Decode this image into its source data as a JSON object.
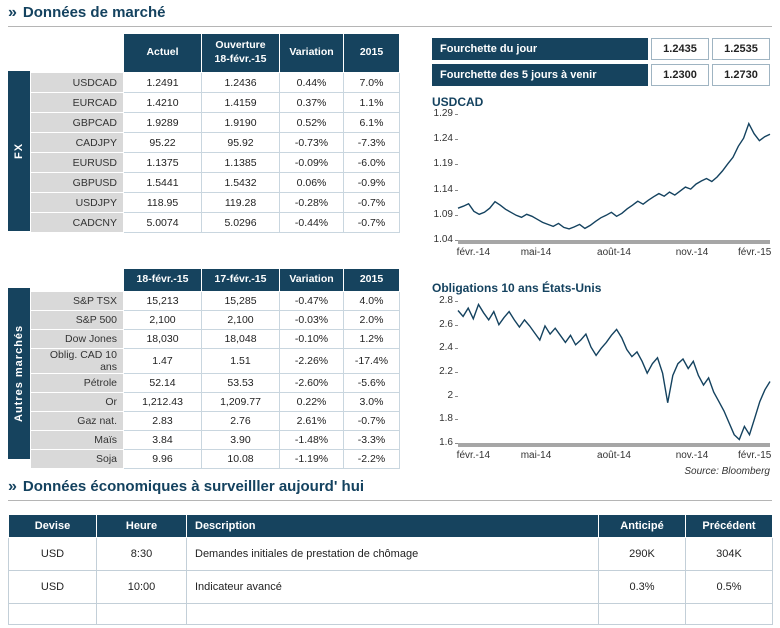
{
  "icons": {
    "section_chevron": "»"
  },
  "colors": {
    "navy": "#16435E",
    "green": "#2E9E50",
    "red": "#CC3333",
    "label_gray": "#D9D9D9",
    "axis_gray": "#A6A6A6"
  },
  "sections": {
    "market_title": "Données de marché",
    "econ_title": "Données économiques à surveilller aujourd' hui"
  },
  "fx_table": {
    "side_label": "FX",
    "columns": [
      "Actuel",
      "Ouverture\n18-févr.-15",
      "Variation",
      "2015"
    ],
    "rows": [
      {
        "label": "USDCAD",
        "values": [
          "1.2491",
          "1.2436",
          "0.44%",
          "7.0%"
        ]
      },
      {
        "label": "EURCAD",
        "values": [
          "1.4210",
          "1.4159",
          "0.37%",
          "1.1%"
        ]
      },
      {
        "label": "GBPCAD",
        "values": [
          "1.9289",
          "1.9190",
          "0.52%",
          "6.1%"
        ]
      },
      {
        "label": "CADJPY",
        "values": [
          "95.22",
          "95.92",
          "-0.73%",
          "-7.3%"
        ]
      },
      {
        "label": "EURUSD",
        "values": [
          "1.1375",
          "1.1385",
          "-0.09%",
          "-6.0%"
        ]
      },
      {
        "label": "GBPUSD",
        "values": [
          "1.5441",
          "1.5432",
          "0.06%",
          "-0.9%"
        ]
      },
      {
        "label": "USDJPY",
        "values": [
          "118.95",
          "119.28",
          "-0.28%",
          "-0.7%"
        ]
      },
      {
        "label": "CADCNY",
        "values": [
          "5.0074",
          "5.0296",
          "-0.44%",
          "-0.7%"
        ]
      }
    ]
  },
  "markets_table": {
    "side_label": "Autres marchés",
    "columns": [
      "18-févr.-15",
      "17-févr.-15",
      "Variation",
      "2015"
    ],
    "rows": [
      {
        "label": "S&P TSX",
        "values": [
          "15,213",
          "15,285",
          "-0.47%",
          "4.0%"
        ]
      },
      {
        "label": "S&P 500",
        "values": [
          "2,100",
          "2,100",
          "-0.03%",
          "2.0%"
        ]
      },
      {
        "label": "Dow Jones",
        "values": [
          "18,030",
          "18,048",
          "-0.10%",
          "1.2%"
        ]
      },
      {
        "label": "Oblig. CAD 10 ans",
        "values": [
          "1.47",
          "1.51",
          "-2.26%",
          "-17.4%"
        ]
      },
      {
        "label": "Pétrole",
        "values": [
          "52.14",
          "53.53",
          "-2.60%",
          "-5.6%"
        ]
      },
      {
        "label": "Or",
        "values": [
          "1,212.43",
          "1,209.77",
          "0.22%",
          "3.0%"
        ]
      },
      {
        "label": "Gaz nat.",
        "values": [
          "2.83",
          "2.76",
          "2.61%",
          "-0.7%"
        ]
      },
      {
        "label": "Maïs",
        "values": [
          "3.84",
          "3.90",
          "-1.48%",
          "-3.3%"
        ]
      },
      {
        "label": "Soja",
        "values": [
          "9.96",
          "10.08",
          "-1.19%",
          "-2.2%"
        ]
      }
    ]
  },
  "ranges": [
    {
      "label": "Fourchette du jour",
      "low": "1.2435",
      "high": "1.2535"
    },
    {
      "label": "Fourchette des 5 jours à venir",
      "low": "1.2300",
      "high": "1.2730"
    }
  ],
  "source": "Source: Bloomberg",
  "econ_section": {
    "columns": [
      "Devise",
      "Heure",
      "Description",
      "Anticipé",
      "Précédent"
    ],
    "rows": [
      {
        "values": [
          "USD",
          "8:30",
          "Demandes initiales de prestation de chômage",
          "290K",
          "304K"
        ]
      },
      {
        "values": [
          "USD",
          "10:00",
          "Indicateur avancé",
          "0.3%",
          "0.5%"
        ]
      },
      {
        "values": [
          "",
          "",
          "",
          "",
          ""
        ]
      }
    ]
  },
  "chart_data": [
    {
      "type": "line",
      "title": "USDCAD",
      "x_tick_labels": [
        "févr.-14",
        "mai-14",
        "août-14",
        "nov.-14",
        "févr.-15"
      ],
      "y_ticks": [
        "1.04",
        "1.09",
        "1.14",
        "1.19",
        "1.24",
        "1.29"
      ],
      "ylim": [
        1.04,
        1.29
      ],
      "line_color": "#14425F",
      "values": [
        1.103,
        1.107,
        1.112,
        1.097,
        1.091,
        1.095,
        1.103,
        1.116,
        1.109,
        1.101,
        1.095,
        1.089,
        1.085,
        1.091,
        1.087,
        1.081,
        1.075,
        1.071,
        1.067,
        1.073,
        1.065,
        1.062,
        1.066,
        1.071,
        1.063,
        1.069,
        1.077,
        1.084,
        1.089,
        1.095,
        1.087,
        1.093,
        1.102,
        1.109,
        1.117,
        1.111,
        1.119,
        1.126,
        1.132,
        1.127,
        1.135,
        1.129,
        1.137,
        1.145,
        1.141,
        1.151,
        1.157,
        1.162,
        1.156,
        1.165,
        1.177,
        1.191,
        1.204,
        1.226,
        1.242,
        1.271,
        1.251,
        1.237,
        1.245,
        1.25
      ]
    },
    {
      "type": "line",
      "title": "Obligations 10 ans États-Unis",
      "x_tick_labels": [
        "févr.-14",
        "mai-14",
        "août-14",
        "nov.-14",
        "févr.-15"
      ],
      "y_ticks": [
        "1.6",
        "1.8",
        "2",
        "2.2",
        "2.4",
        "2.6",
        "2.8"
      ],
      "ylim": [
        1.6,
        2.8
      ],
      "line_color": "#14425F",
      "values": [
        2.72,
        2.67,
        2.74,
        2.65,
        2.77,
        2.7,
        2.64,
        2.71,
        2.6,
        2.66,
        2.71,
        2.64,
        2.58,
        2.64,
        2.59,
        2.53,
        2.47,
        2.59,
        2.52,
        2.57,
        2.51,
        2.45,
        2.51,
        2.43,
        2.47,
        2.52,
        2.41,
        2.34,
        2.4,
        2.45,
        2.51,
        2.56,
        2.49,
        2.39,
        2.33,
        2.37,
        2.29,
        2.19,
        2.27,
        2.32,
        2.19,
        1.94,
        2.17,
        2.27,
        2.31,
        2.23,
        2.29,
        2.17,
        2.09,
        2.15,
        2.03,
        1.95,
        1.87,
        1.77,
        1.67,
        1.63,
        1.74,
        1.67,
        1.81,
        1.95,
        2.05,
        2.12
      ]
    }
  ]
}
